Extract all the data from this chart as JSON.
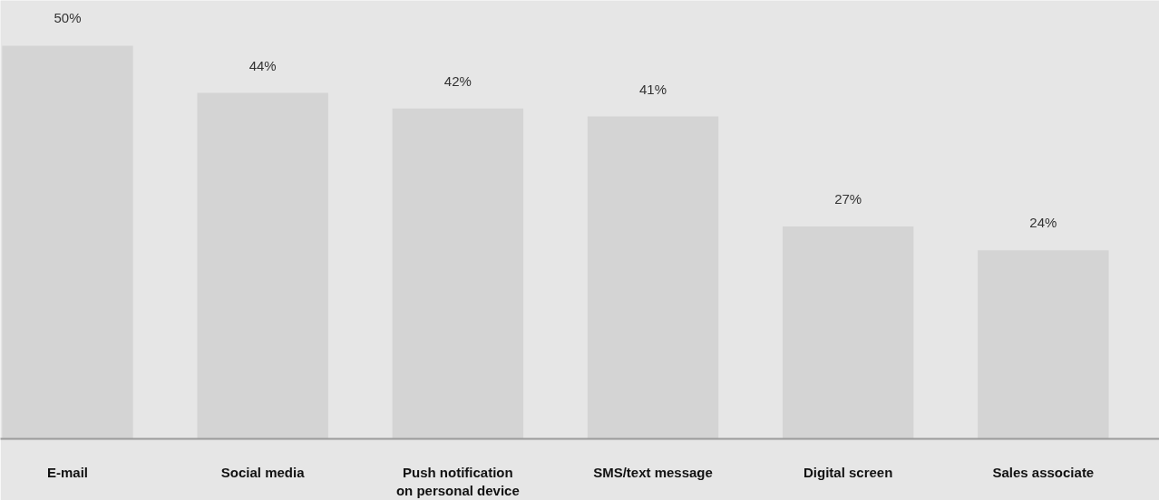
{
  "chart_data": {
    "type": "bar",
    "categories": [
      "E-mail",
      "Social media",
      "Push notification on personal device",
      "SMS/text message",
      "Digital screen",
      "Sales associate"
    ],
    "values": [
      50,
      44,
      42,
      41,
      27,
      24
    ],
    "color": "#d4d4d4",
    "value_labels": [
      "50%",
      "44%",
      "42%",
      "41%",
      "27%",
      "24%"
    ]
  }
}
